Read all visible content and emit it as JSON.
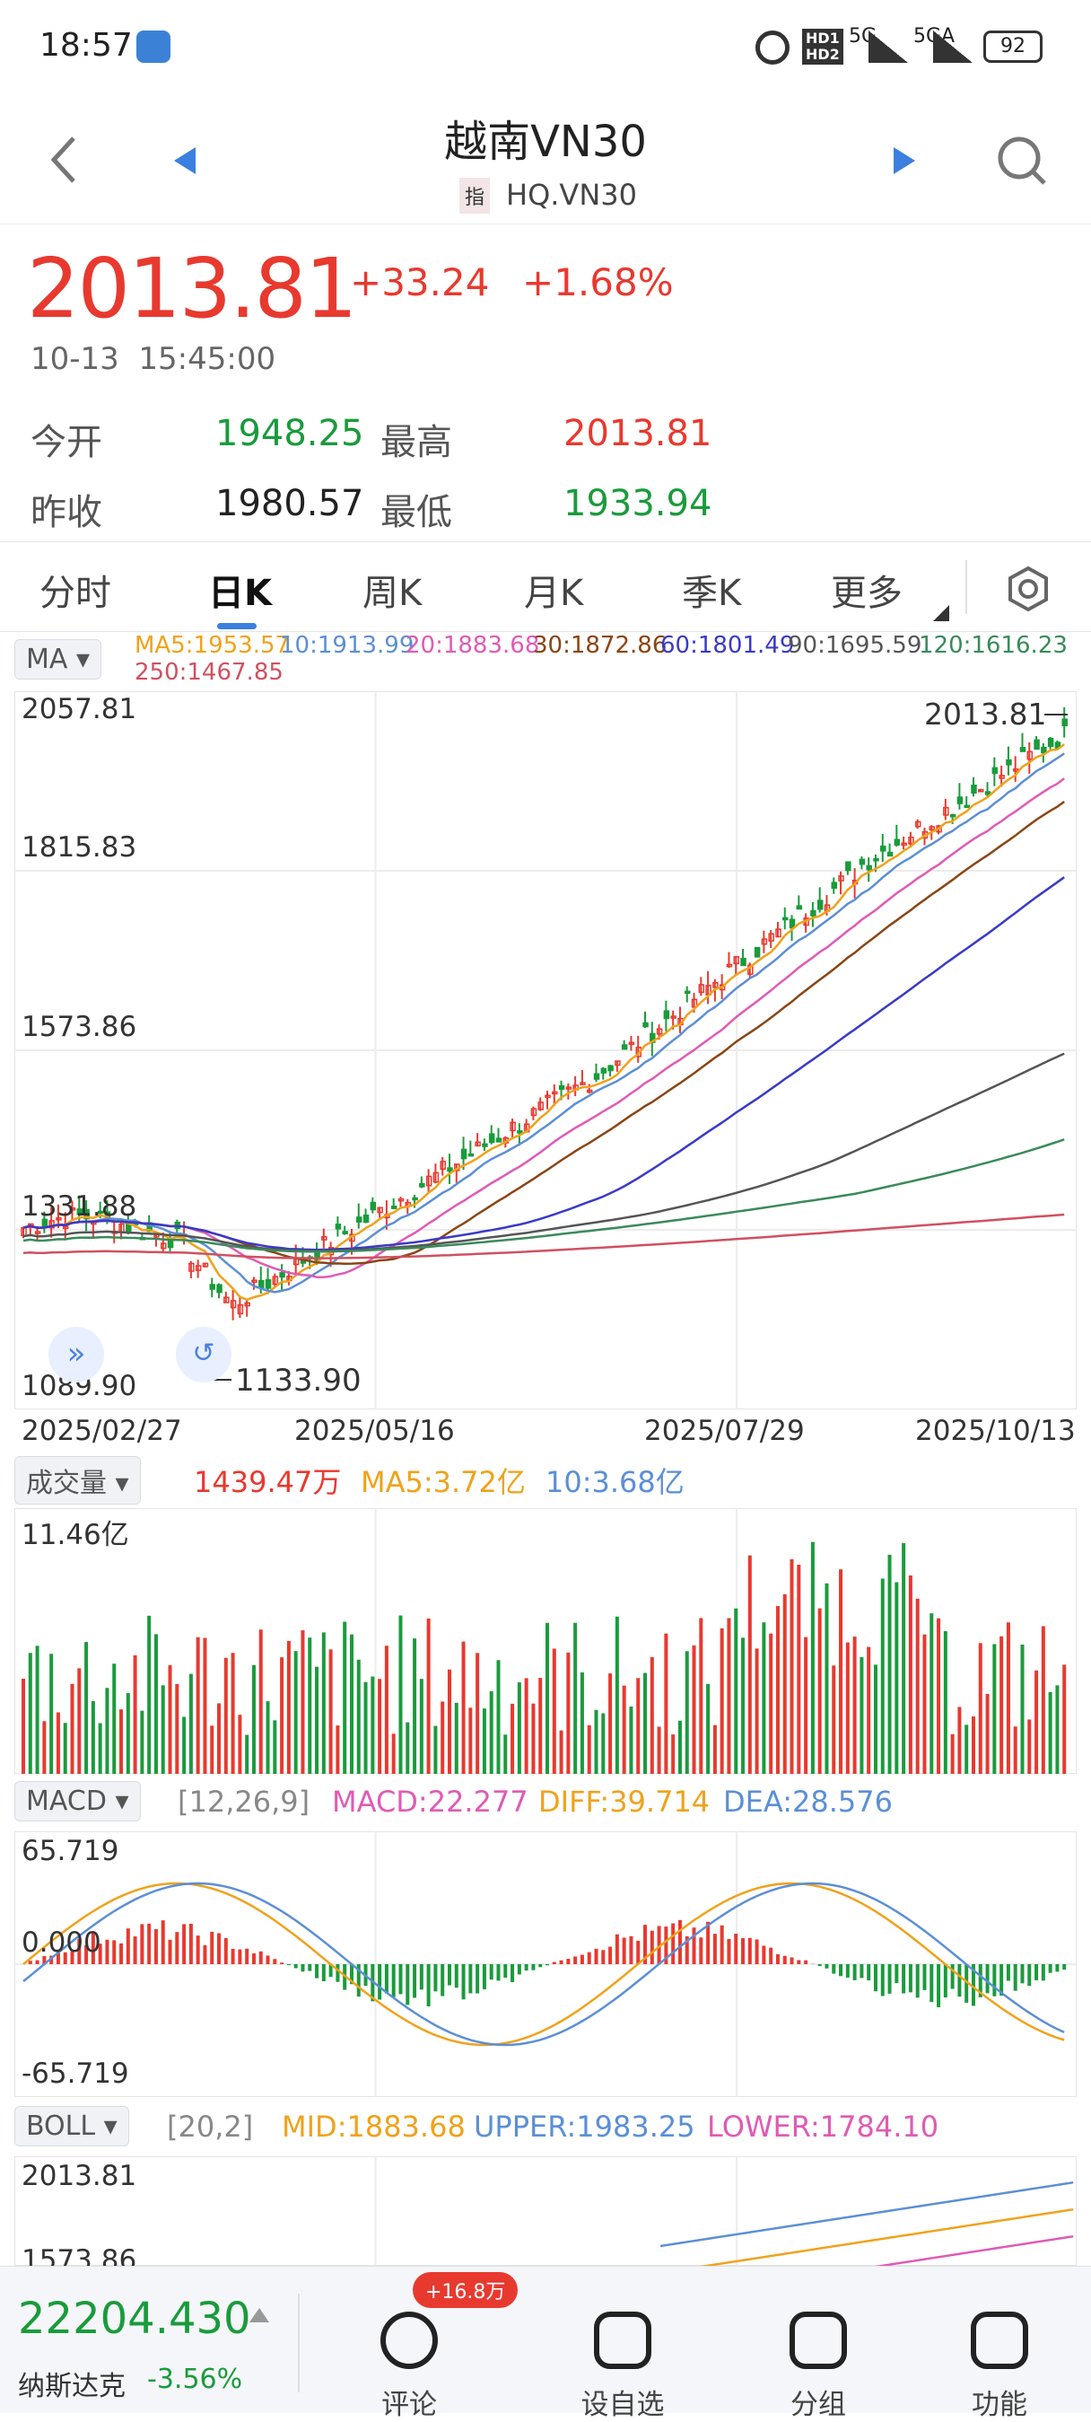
{
  "status_bar": {
    "time": "18:57",
    "network1": "5G",
    "network2": "5GA",
    "battery": "92"
  },
  "header": {
    "title": "越南VN30",
    "index_tag": "指",
    "code": "HQ.VN30"
  },
  "quote": {
    "price": "2013.81",
    "change": "+33.24",
    "change_pct": "+1.68%",
    "datetime": "10-13  15:45:00",
    "open_label": "今开",
    "open": "1948.25",
    "high_label": "最高",
    "high": "2013.81",
    "prev_close_label": "昨收",
    "prev_close": "1980.57",
    "low_label": "最低",
    "low": "1933.94"
  },
  "tabs": [
    {
      "label": "分时"
    },
    {
      "label": "日K"
    },
    {
      "label": "周K"
    },
    {
      "label": "月K"
    },
    {
      "label": "季K"
    },
    {
      "label": "更多"
    }
  ],
  "ma_bar": {
    "selector": "MA",
    "ma5": "MA5:1953.57",
    "ma10": "10:1913.99",
    "ma20": "20:1883.68",
    "ma30": "30:1872.86",
    "ma60": "60:1801.49",
    "ma90": "90:1695.59",
    "ma120": "120:1616.23",
    "ma250": "250:1467.85"
  },
  "kline": {
    "y_ticks": [
      "2057.81",
      "1815.83",
      "1573.86",
      "1331.88",
      "1089.90"
    ],
    "last_label": "2013.81",
    "low_label": "1133.90",
    "x_ticks": [
      "2025/02/27",
      "2025/05/16",
      "2025/07/29",
      "2025/10/13"
    ]
  },
  "volume": {
    "selector": "成交量",
    "vol": "1439.47万",
    "ma5": "MA5:3.72亿",
    "ma10": "10:3.68亿",
    "y_max": "11.46亿"
  },
  "macd": {
    "selector": "MACD",
    "params": "[12,26,9]",
    "macd": "MACD:22.277",
    "diff": "DIFF:39.714",
    "dea": "DEA:28.576",
    "y_max": "65.719",
    "y_zero": "0.000",
    "y_min": "-65.719"
  },
  "boll": {
    "selector": "BOLL",
    "params": "[20,2]",
    "mid": "MID:1883.68",
    "upper": "UPPER:1983.25",
    "lower": "LOWER:1784.10",
    "y_max": "2013.81",
    "y_next": "1573.86"
  },
  "bottom": {
    "ticker_value": "22204.430",
    "ticker_name": "纳斯达克",
    "ticker_change": "-3.56%",
    "comment_badge": "+16.8万",
    "buttons": [
      {
        "label": "评论"
      },
      {
        "label": "设自选"
      },
      {
        "label": "分组"
      },
      {
        "label": "功能"
      }
    ]
  },
  "colors": {
    "up": "#e8392f",
    "down": "#1a9b3c",
    "ma5": "#f0a21a",
    "ma10": "#5b8fd6",
    "ma20": "#e05ab5",
    "ma30": "#8b4513",
    "ma60": "#3a3ac8",
    "ma90": "#555555",
    "ma120": "#3a8a5a",
    "ma250": "#d05060"
  }
}
